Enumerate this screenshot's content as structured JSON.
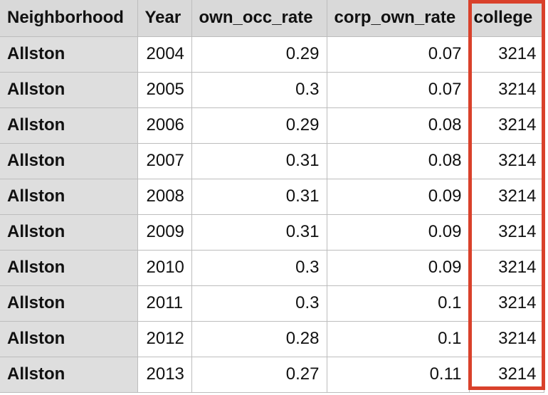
{
  "table": {
    "columns": [
      "Neighborhood",
      "Year",
      "own_occ_rate",
      "corp_own_rate",
      "college"
    ],
    "rows": [
      [
        "Allston",
        "2004",
        "0.29",
        "0.07",
        "3214"
      ],
      [
        "Allston",
        "2005",
        "0.3",
        "0.07",
        "3214"
      ],
      [
        "Allston",
        "2006",
        "0.29",
        "0.08",
        "3214"
      ],
      [
        "Allston",
        "2007",
        "0.31",
        "0.08",
        "3214"
      ],
      [
        "Allston",
        "2008",
        "0.31",
        "0.09",
        "3214"
      ],
      [
        "Allston",
        "2009",
        "0.31",
        "0.09",
        "3214"
      ],
      [
        "Allston",
        "2010",
        "0.3",
        "0.09",
        "3214"
      ],
      [
        "Allston",
        "2011",
        "0.3",
        "0.1",
        "3214"
      ],
      [
        "Allston",
        "2012",
        "0.28",
        "0.1",
        "3214"
      ],
      [
        "Allston",
        "2013",
        "0.27",
        "0.11",
        "3214"
      ]
    ]
  },
  "highlight": {
    "column": "college",
    "color": "#d9412b"
  },
  "colors": {
    "header_bg": "#d9d9d9",
    "first_col_bg": "#dedede",
    "grid_line": "#bdbdbd"
  }
}
